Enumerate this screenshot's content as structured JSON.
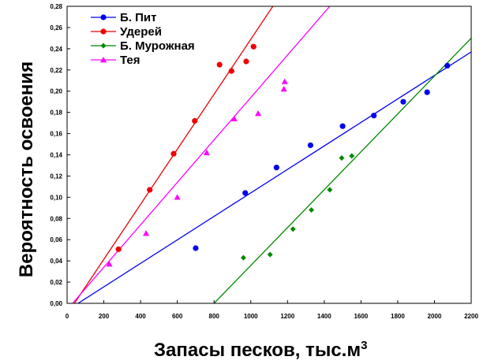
{
  "chart_data": {
    "type": "scatter",
    "xlabel": "Запасы песков, тыс.м",
    "xlabel_superscript": "3",
    "ylabel": "Вероятность освоения",
    "xlim": [
      0,
      2200
    ],
    "ylim": [
      0,
      0.28
    ],
    "xticks": [
      "0",
      "200",
      "400",
      "600",
      "800",
      "1000",
      "1200",
      "1400",
      "1600",
      "1800",
      "2000",
      "2200"
    ],
    "yticks": [
      "0,00",
      "0,02",
      "0,04",
      "0,06",
      "0,08",
      "0,10",
      "0,12",
      "0,14",
      "0,16",
      "0,18",
      "0,20",
      "0,22",
      "0,24",
      "0,26",
      "0,28"
    ],
    "grid": false,
    "legend_position": "top-left",
    "series": [
      {
        "name": "Б. Пит",
        "color": "#0000ee",
        "marker": "circle",
        "points": [
          [
            700,
            0.052
          ],
          [
            970,
            0.104
          ],
          [
            1140,
            0.128
          ],
          [
            1325,
            0.149
          ],
          [
            1500,
            0.167
          ],
          [
            1670,
            0.177
          ],
          [
            1830,
            0.19
          ],
          [
            1960,
            0.199
          ],
          [
            2070,
            0.224
          ]
        ],
        "fit_line": [
          [
            60,
            0.0
          ],
          [
            2200,
            0.237
          ]
        ]
      },
      {
        "name": "Удерей",
        "color": "#ee0000",
        "marker": "circle",
        "points": [
          [
            280,
            0.051
          ],
          [
            450,
            0.107
          ],
          [
            580,
            0.141
          ],
          [
            695,
            0.172
          ],
          [
            830,
            0.225
          ],
          [
            895,
            0.219
          ],
          [
            975,
            0.228
          ],
          [
            1015,
            0.242
          ]
        ],
        "fit_line": [
          [
            40,
            0.0
          ],
          [
            1120,
            0.28
          ]
        ]
      },
      {
        "name": "Б. Мурожная",
        "color": "#008800",
        "marker": "diamond",
        "points": [
          [
            960,
            0.043
          ],
          [
            1105,
            0.046
          ],
          [
            1230,
            0.07
          ],
          [
            1330,
            0.088
          ],
          [
            1430,
            0.107
          ],
          [
            1495,
            0.137
          ],
          [
            1550,
            0.139
          ]
        ],
        "fit_line": [
          [
            800,
            0.0
          ],
          [
            2200,
            0.25
          ]
        ]
      },
      {
        "name": "Тея",
        "color": "#ff00ff",
        "marker": "triangle",
        "points": [
          [
            230,
            0.037
          ],
          [
            430,
            0.066
          ],
          [
            600,
            0.1
          ],
          [
            760,
            0.142
          ],
          [
            910,
            0.174
          ],
          [
            1040,
            0.179
          ],
          [
            1180,
            0.202
          ],
          [
            1185,
            0.209
          ]
        ],
        "fit_line": [
          [
            30,
            0.0
          ],
          [
            1430,
            0.28
          ]
        ]
      }
    ]
  }
}
